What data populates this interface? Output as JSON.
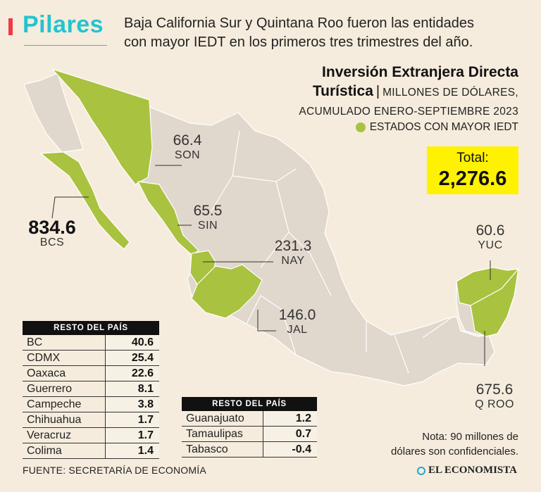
{
  "brand": "Pilares",
  "subtitle_line1": "Baja California Sur y Quintana Roo fueron las entidades",
  "subtitle_line2": "con mayor  IEDT en los primeros tres trimestres del año.",
  "chart_data": {
    "type": "map",
    "title_line1": "Inversión Extranjera Directa",
    "title_line2": "Turística",
    "units_line1": "MILLONES DE DÓLARES,",
    "units_line2": "ACUMULADO ENERO-SEPTIEMBRE 2023",
    "legend": "ESTADOS CON MAYOR IEDT",
    "highlight_color": "#a9c23f",
    "base_color": "#e0d7cd",
    "total_label": "Total:",
    "total_value": "2,276.6",
    "highlighted_states": [
      {
        "abbr": "BCS",
        "value": "834.6"
      },
      {
        "abbr": "SON",
        "value": "66.4"
      },
      {
        "abbr": "SIN",
        "value": "65.5"
      },
      {
        "abbr": "NAY",
        "value": "231.3"
      },
      {
        "abbr": "JAL",
        "value": "146.0"
      },
      {
        "abbr": "YUC",
        "value": "60.6"
      },
      {
        "abbr": "Q ROO",
        "value": "675.6"
      }
    ],
    "rest_title": "RESTO DEL PAÍS",
    "rest_table_1": [
      {
        "state": "BC",
        "value": "40.6"
      },
      {
        "state": "CDMX",
        "value": "25.4"
      },
      {
        "state": "Oaxaca",
        "value": "22.6"
      },
      {
        "state": "Guerrero",
        "value": "8.1"
      },
      {
        "state": "Campeche",
        "value": "3.8"
      },
      {
        "state": "Chihuahua",
        "value": "1.7"
      },
      {
        "state": "Veracruz",
        "value": "1.7"
      },
      {
        "state": "Colima",
        "value": "1.4"
      }
    ],
    "rest_table_2": [
      {
        "state": "Guanajuato",
        "value": "1.2"
      },
      {
        "state": "Tamaulipas",
        "value": "0.7"
      },
      {
        "state": "Tabasco",
        "value": "-0.4"
      }
    ],
    "note_line1": "Nota: 90 millones de",
    "note_line2": "dólares son confidenciales."
  },
  "source": "FUENTE: SECRETARÍA DE ECONOMÍA",
  "logo": "EL ECONOMISTA"
}
